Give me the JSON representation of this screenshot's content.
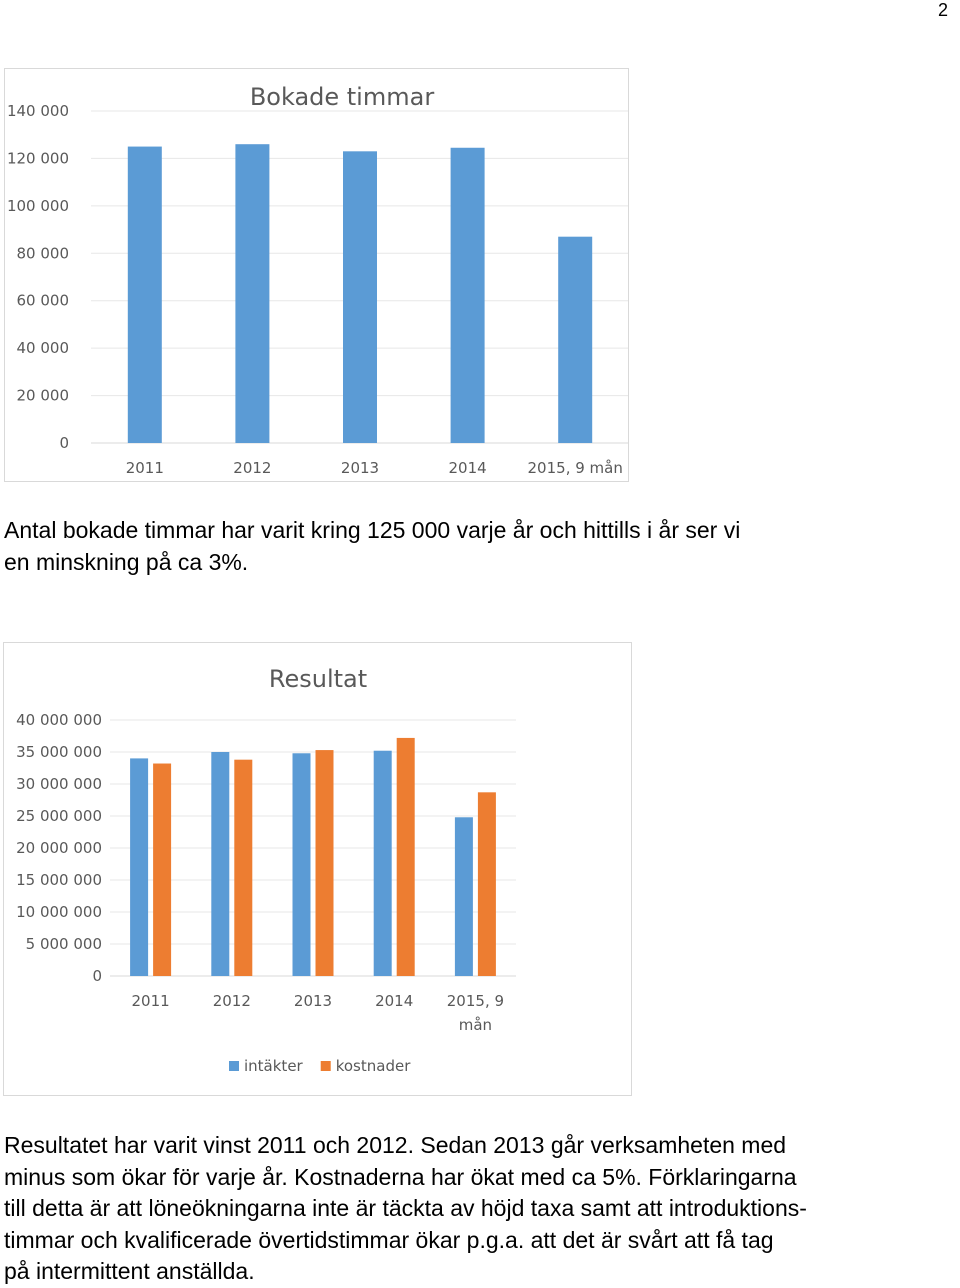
{
  "page_number": "2",
  "chart_data": [
    {
      "type": "bar",
      "title": "Bokade timmar",
      "categories": [
        "2011",
        "2012",
        "2013",
        "2014",
        "2015, 9 mån"
      ],
      "series": [
        {
          "values": [
            125000,
            126000,
            123000,
            124500,
            87000
          ],
          "color": "#5b9bd5"
        }
      ],
      "ylim": [
        0,
        140000
      ],
      "yticks": [
        0,
        20000,
        40000,
        60000,
        80000,
        100000,
        120000,
        140000
      ],
      "ytick_labels": [
        "0",
        "20 000",
        "40 000",
        "60 000",
        "80 000",
        "100 000",
        "120 000",
        "140 000"
      ],
      "grid": true,
      "legend": "none"
    },
    {
      "type": "bar",
      "title": "Resultat",
      "categories": [
        "2011",
        "2012",
        "2013",
        "2014",
        "2015, 9 mån"
      ],
      "series": [
        {
          "name": "intäkter",
          "values": [
            34000000,
            35000000,
            34800000,
            35200000,
            24800000
          ],
          "color": "#5b9bd5"
        },
        {
          "name": "kostnader",
          "values": [
            33200000,
            33800000,
            35300000,
            37200000,
            28700000
          ],
          "color": "#ed7d31"
        }
      ],
      "ylim": [
        0,
        40000000
      ],
      "yticks": [
        0,
        5000000,
        10000000,
        15000000,
        20000000,
        25000000,
        30000000,
        35000000,
        40000000
      ],
      "ytick_labels": [
        "0",
        "5 000 000",
        "10 000 000",
        "15 000 000",
        "20 000 000",
        "25 000 000",
        "30 000 000",
        "35 000 000",
        "40 000 000"
      ],
      "grid": true,
      "legend": "bottom"
    }
  ],
  "paragraphs": {
    "p1": [
      "Antal bokade timmar har varit kring 125 000 varje år och hittills i år ser vi",
      "en minskning på ca 3%."
    ],
    "p2": [
      "Resultatet har varit vinst 2011 och 2012. Sedan 2013 går verksamheten med",
      "minus som ökar för varje år. Kostnaderna har ökat med ca 5%. Förklaringarna",
      "till detta är att löneökningarna inte är täckta av höjd taxa samt att introduktions-",
      "timmar och kvalificerade övertidstimmar ökar p.g.a. att det är svårt att få tag",
      "på intermittent anställda."
    ]
  }
}
